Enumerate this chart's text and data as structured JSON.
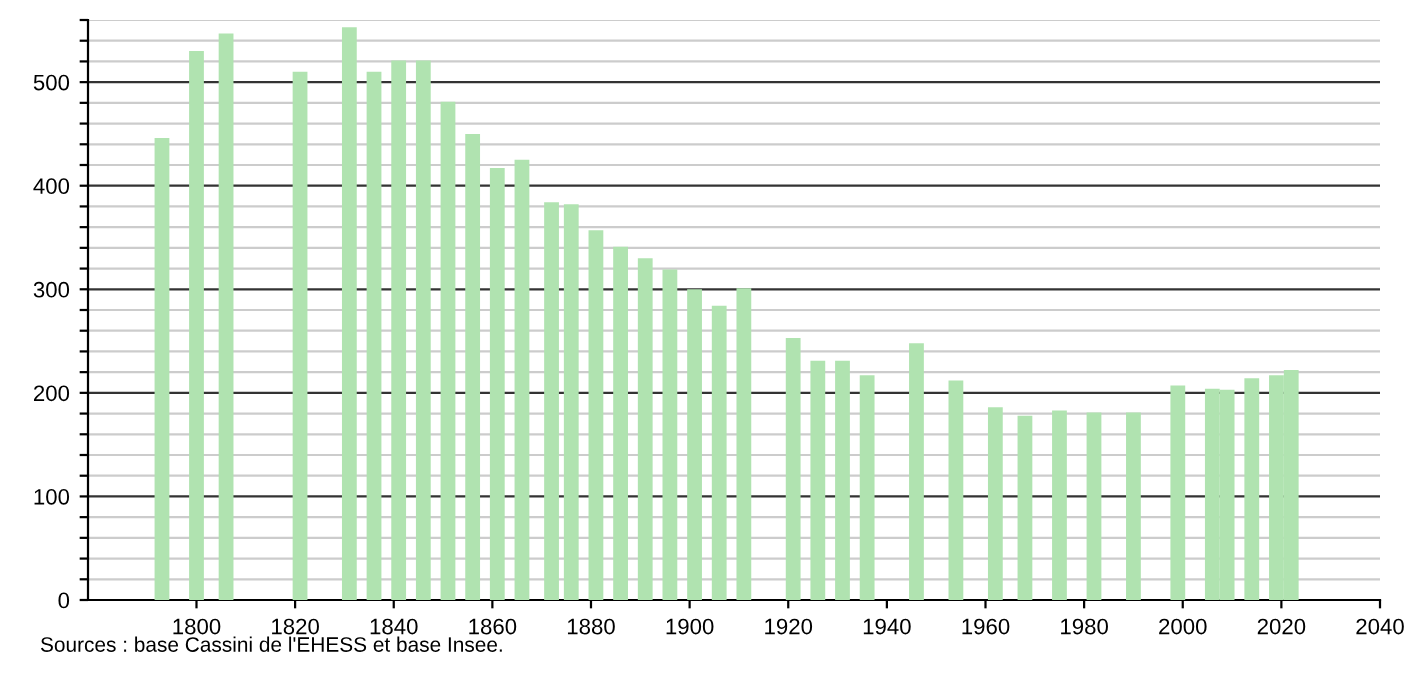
{
  "chart_data": {
    "type": "bar",
    "x": [
      1793,
      1800,
      1806,
      1821,
      1831,
      1836,
      1841,
      1846,
      1851,
      1856,
      1861,
      1866,
      1872,
      1876,
      1881,
      1886,
      1891,
      1896,
      1901,
      1906,
      1911,
      1921,
      1926,
      1931,
      1936,
      1946,
      1954,
      1962,
      1968,
      1975,
      1982,
      1990,
      1999,
      2006,
      2009,
      2014,
      2019,
      2022
    ],
    "values": [
      446,
      530,
      547,
      510,
      553,
      510,
      521,
      521,
      481,
      450,
      417,
      425,
      384,
      382,
      357,
      341,
      330,
      319,
      300,
      284,
      301,
      253,
      231,
      231,
      217,
      248,
      212,
      186,
      178,
      183,
      181,
      181,
      207,
      204,
      203,
      214,
      217,
      222
    ],
    "color": "#b0e3b0",
    "xlim": [
      1778,
      2040
    ],
    "xticks": [
      1800,
      1820,
      1840,
      1860,
      1880,
      1900,
      1920,
      1940,
      1960,
      1980,
      2000,
      2020,
      2040
    ],
    "ylim": [
      0,
      560
    ],
    "yticks": [
      0,
      {
        "value": 20,
        "label": null
      },
      {
        "value": 40,
        "label": null
      },
      {
        "value": 60,
        "label": null
      },
      {
        "value": 80,
        "label": null
      },
      100,
      {
        "value": 120,
        "label": null
      },
      {
        "value": 140,
        "label": null
      },
      {
        "value": 160,
        "label": null
      },
      {
        "value": 180,
        "label": null
      },
      200,
      {
        "value": 220,
        "label": null
      },
      {
        "value": 240,
        "label": null
      },
      {
        "value": 260,
        "label": null
      },
      {
        "value": 280,
        "label": null
      },
      300,
      {
        "value": 320,
        "label": null
      },
      {
        "value": 340,
        "label": null
      },
      {
        "value": 360,
        "label": null
      },
      {
        "value": 380,
        "label": null
      },
      400,
      {
        "value": 420,
        "label": null
      },
      {
        "value": 440,
        "label": null
      },
      {
        "value": 460,
        "label": null
      },
      {
        "value": 480,
        "label": null
      },
      500,
      {
        "value": 520,
        "label": null
      },
      {
        "value": 540,
        "label": null
      },
      {
        "value": 560,
        "label": null
      }
    ],
    "grid": "y",
    "annotations": [
      "Sources : base Cassini de l'EHESS et base Insee."
    ]
  }
}
